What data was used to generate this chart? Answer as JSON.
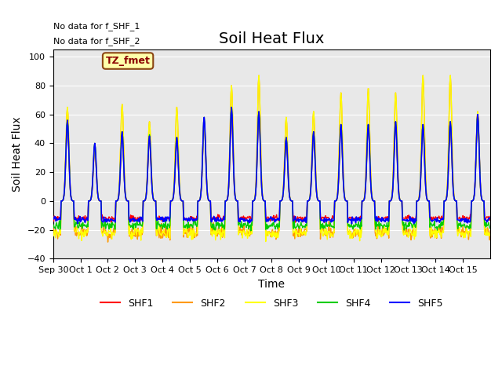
{
  "title": "Soil Heat Flux",
  "ylabel": "Soil Heat Flux",
  "xlabel": "Time",
  "ylim": [
    -40,
    105
  ],
  "yticks": [
    -40,
    -20,
    0,
    20,
    40,
    60,
    80,
    100
  ],
  "annotation_lines": [
    "No data for f_SHF_1",
    "No data for f_SHF_2"
  ],
  "tz_label": "TZ_fmet",
  "legend_entries": [
    "SHF1",
    "SHF2",
    "SHF3",
    "SHF4",
    "SHF5"
  ],
  "legend_colors": [
    "#ff0000",
    "#ff9900",
    "#ffff00",
    "#00cc00",
    "#0000ff"
  ],
  "xtick_labels": [
    "Sep 30",
    "Oct 1",
    "Oct 2",
    "Oct 3",
    "Oct 4",
    "Oct 5",
    "Oct 6",
    "Oct 7",
    "Oct 8",
    "Oct 9",
    "Oct 10",
    "Oct 11",
    "Oct 12",
    "Oct 13",
    "Oct 14",
    "Oct 15"
  ],
  "background_color": "#e8e8e8",
  "fig_background": "#ffffff",
  "title_fontsize": 14,
  "axis_label_fontsize": 10,
  "tick_fontsize": 8,
  "n_days": 16,
  "n_pts_day": 48,
  "shf5_peaks": [
    56,
    40,
    48,
    45,
    44,
    58,
    65,
    62,
    44,
    48,
    53,
    53,
    55,
    53,
    55,
    60
  ],
  "shf3_peaks": [
    65,
    40,
    67,
    55,
    65,
    55,
    80,
    87,
    58,
    62,
    75,
    78,
    75,
    87,
    87,
    62
  ],
  "shf2_peaks": [
    65,
    38,
    67,
    55,
    65,
    55,
    80,
    87,
    58,
    62,
    75,
    78,
    75,
    87,
    87,
    62
  ],
  "shf1_peaks": [
    56,
    37,
    47,
    44,
    42,
    56,
    60,
    61,
    43,
    47,
    52,
    52,
    54,
    52,
    53,
    61
  ],
  "shf4_peaks": [
    56,
    40,
    48,
    46,
    44,
    58,
    65,
    62,
    44,
    48,
    53,
    53,
    55,
    53,
    55,
    60
  ]
}
